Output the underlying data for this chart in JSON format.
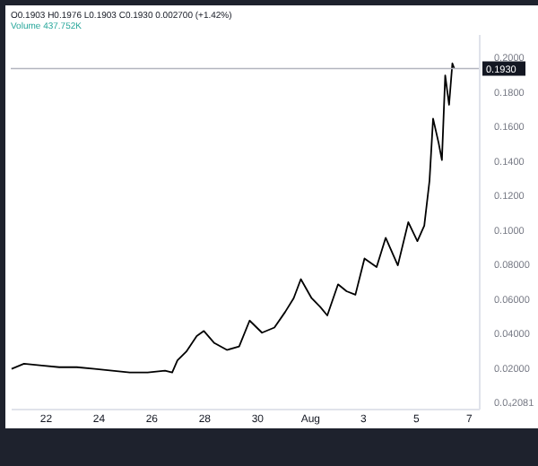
{
  "chart_data": {
    "type": "line",
    "annotations": [
      "O0.1903 H0.1976 L0.1903 C0.1930 0.002700 (+1.42%)",
      "Volume 437.752K"
    ],
    "x": [
      "--07-20T17:30",
      "--07-21T04:45",
      "--07-21T21:00",
      "--07-22T12:45",
      "--07-23T04:45",
      "--07-23T21:00",
      "--07-24T12:45",
      "--07-25T04:45",
      "--07-25T21:00",
      "--07-26T12:45",
      "--07-26T19:15",
      "--07-27T00:00",
      "--07-27T08:00",
      "--07-27T17:30",
      "--07-28T00:00",
      "--07-28T09:30",
      "--07-28T21:00",
      "--07-29T08:00",
      "--07-29T17:30",
      "--07-30T04:45",
      "--07-30T16:00",
      "--07-31T01:45",
      "--07-31T09:30",
      "--07-31T16:00",
      "--08-01T01:45",
      "--08-01T09:30",
      "--08-01T16:00",
      "--08-02T01:45",
      "--08-02T09:30",
      "--08-02T17:30",
      "--08-03T01:45",
      "--08-03T12:45",
      "--08-03T21:00",
      "--08-04T08:00",
      "--08-04T17:30",
      "--08-05T01:45",
      "--08-05T08:00",
      "--08-05T12:45",
      "--08-05T16:00",
      "--08-05T21:00",
      "--08-06T00:00",
      "--08-06T03:00",
      "--08-06T06:30",
      "--08-06T09:30",
      "--08-06T11:15"
    ],
    "series": [
      {
        "color": "#000000",
        "values": [
          0.019,
          0.022,
          0.021,
          0.02,
          0.02,
          0.019,
          0.018,
          0.017,
          0.017,
          0.018,
          0.017,
          0.024,
          0.029,
          0.038,
          0.041,
          0.034,
          0.03,
          0.032,
          0.047,
          0.04,
          0.043,
          0.052,
          0.06,
          0.071,
          0.06,
          0.055,
          0.05,
          0.068,
          0.064,
          0.062,
          0.083,
          0.078,
          0.095,
          0.079,
          0.104,
          0.093,
          0.102,
          0.128,
          0.164,
          0.15,
          0.14,
          0.189,
          0.172,
          0.196,
          0.193
        ]
      }
    ],
    "xlim": [
      "--07-20T16:45",
      "--08-07T09:30"
    ],
    "xticks": [
      {
        "value": "--07-22",
        "label": "22"
      },
      {
        "value": "--07-24",
        "label": "24"
      },
      {
        "value": "--07-26",
        "label": "26"
      },
      {
        "value": "--07-28",
        "label": "28"
      },
      {
        "value": "--07-30",
        "label": "30"
      },
      {
        "value": "--08-01",
        "label": "Aug"
      },
      {
        "value": "--08-03",
        "label": "3"
      },
      {
        "value": "--08-05",
        "label": "5"
      },
      {
        "value": "--08-07",
        "label": "7"
      }
    ],
    "ylim": [
      -0.004,
      0.213
    ],
    "yticks": [
      {
        "value": 2.081e-05,
        "label": "0.0₄2081"
      },
      {
        "value": 0.02,
        "label": "0.02000"
      },
      {
        "value": 0.04,
        "label": "0.04000"
      },
      {
        "value": 0.06,
        "label": "0.06000"
      },
      {
        "value": 0.08,
        "label": "0.08000"
      },
      {
        "value": 0.1,
        "label": "0.1000"
      },
      {
        "value": 0.12,
        "label": "0.1200"
      },
      {
        "value": 0.14,
        "label": "0.1400"
      },
      {
        "value": 0.16,
        "label": "0.1600"
      },
      {
        "value": 0.18,
        "label": "0.1800"
      },
      {
        "value": 0.2,
        "label": "0.2000"
      }
    ],
    "ref_lines": [
      {
        "axis": "y",
        "value": 0.193,
        "label": "0.1930",
        "color": "#b2b5be"
      }
    ],
    "grid": false,
    "line_style": "solid",
    "marker": "none"
  }
}
